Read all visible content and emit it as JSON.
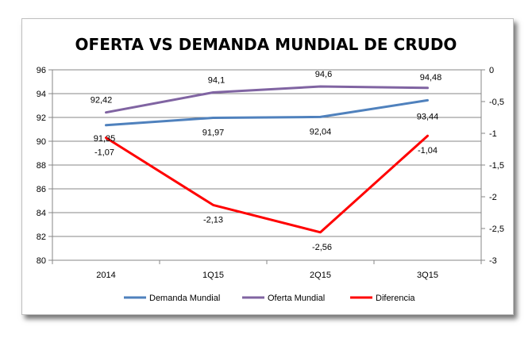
{
  "chart_data": {
    "type": "line",
    "title": "OFERTA VS DEMANDA MUNDIAL DE CRUDO",
    "categories": [
      "2014",
      "1Q15",
      "2Q15",
      "3Q15"
    ],
    "y_left": {
      "min": 80,
      "max": 96,
      "step": 2,
      "ticks": [
        "80",
        "82",
        "84",
        "86",
        "88",
        "90",
        "92",
        "94",
        "96"
      ]
    },
    "y_right": {
      "min": -3,
      "max": 0,
      "step": 0.5,
      "ticks": [
        "-3",
        "-2,5",
        "-2",
        "-1,5",
        "-1",
        "-0,5",
        "0"
      ]
    },
    "grid": true,
    "legend_position": "bottom",
    "series": [
      {
        "name": "Demanda Mundial",
        "axis": "left",
        "color": "#4f81bd",
        "values": [
          91.35,
          91.97,
          92.04,
          93.44
        ],
        "labels": [
          "91,35",
          "91,97",
          "92,04",
          "93,44"
        ]
      },
      {
        "name": "Oferta Mundial",
        "axis": "left",
        "color": "#8064a2",
        "values": [
          92.42,
          94.1,
          94.6,
          94.48
        ],
        "labels": [
          "92,42",
          "94,1",
          "94,6",
          "94,48"
        ]
      },
      {
        "name": "Diferencia",
        "axis": "right",
        "color": "#ff0000",
        "values": [
          -1.07,
          -2.13,
          -2.56,
          -1.04
        ],
        "labels": [
          "-1,07",
          "-2,13",
          "-2,56",
          "-1,04"
        ]
      }
    ]
  }
}
